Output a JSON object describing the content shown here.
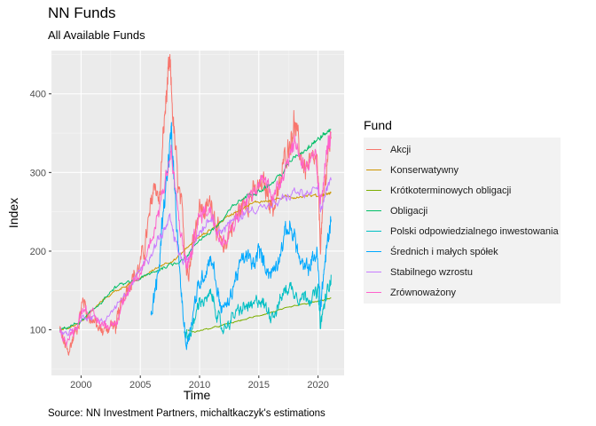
{
  "chart_data": {
    "type": "line",
    "title": "NN Funds",
    "subtitle": "All Available Funds",
    "xlabel": "Time",
    "ylabel": "Index",
    "caption": "Source: NN Investment Partners, michaltkaczyk's estimations",
    "legend_title": "Fund",
    "legend_position": "right",
    "grid": true,
    "xlim": [
      1997.5,
      2022.2
    ],
    "ylim": [
      42,
      455
    ],
    "x_ticks": [
      2000,
      2005,
      2010,
      2015,
      2020
    ],
    "y_ticks": [
      100,
      200,
      300,
      400
    ],
    "series": [
      {
        "name": "Akcji",
        "color": "#F8766D",
        "vol": 0.55,
        "points": [
          [
            1998.2,
            100
          ],
          [
            1998.6,
            82
          ],
          [
            1998.9,
            70
          ],
          [
            1999.3,
            88
          ],
          [
            1999.8,
            110
          ],
          [
            2000.2,
            140
          ],
          [
            2000.6,
            118
          ],
          [
            2001.0,
            112
          ],
          [
            2001.5,
            100
          ],
          [
            2001.9,
            98
          ],
          [
            2002.5,
            108
          ],
          [
            2002.9,
            102
          ],
          [
            2003.2,
            120
          ],
          [
            2003.7,
            150
          ],
          [
            2004.2,
            165
          ],
          [
            2004.8,
            175
          ],
          [
            2005.3,
            200
          ],
          [
            2005.8,
            245
          ],
          [
            2006.2,
            290
          ],
          [
            2006.6,
            260
          ],
          [
            2007.0,
            360
          ],
          [
            2007.3,
            415
          ],
          [
            2007.5,
            435
          ],
          [
            2007.8,
            360
          ],
          [
            2008.2,
            280
          ],
          [
            2008.6,
            240
          ],
          [
            2008.9,
            175
          ],
          [
            2009.2,
            185
          ],
          [
            2009.6,
            230
          ],
          [
            2010.0,
            255
          ],
          [
            2010.5,
            250
          ],
          [
            2011.0,
            265
          ],
          [
            2011.5,
            230
          ],
          [
            2011.9,
            200
          ],
          [
            2012.3,
            215
          ],
          [
            2012.8,
            235
          ],
          [
            2013.3,
            250
          ],
          [
            2013.8,
            262
          ],
          [
            2014.3,
            270
          ],
          [
            2014.8,
            275
          ],
          [
            2015.3,
            285
          ],
          [
            2015.8,
            272
          ],
          [
            2016.2,
            255
          ],
          [
            2016.7,
            275
          ],
          [
            2017.2,
            320
          ],
          [
            2017.7,
            345
          ],
          [
            2018.0,
            365
          ],
          [
            2018.4,
            330
          ],
          [
            2018.9,
            305
          ],
          [
            2019.4,
            310
          ],
          [
            2019.9,
            315
          ],
          [
            2020.2,
            210
          ],
          [
            2020.5,
            270
          ],
          [
            2020.8,
            320
          ],
          [
            2021.1,
            345
          ]
        ]
      },
      {
        "name": "Konserwatywny",
        "color": "#CD9600",
        "vol": 0.08,
        "points": [
          [
            1998.2,
            100
          ],
          [
            1999.0,
            103
          ],
          [
            2000.0,
            110
          ],
          [
            2001.0,
            125
          ],
          [
            2002.0,
            140
          ],
          [
            2003.0,
            150
          ],
          [
            2004.0,
            158
          ],
          [
            2005.0,
            165
          ],
          [
            2006.0,
            175
          ],
          [
            2007.0,
            184
          ],
          [
            2008.0,
            190
          ],
          [
            2009.0,
            205
          ],
          [
            2010.0,
            218
          ],
          [
            2011.0,
            228
          ],
          [
            2012.0,
            240
          ],
          [
            2013.0,
            250
          ],
          [
            2014.0,
            258
          ],
          [
            2015.0,
            263
          ],
          [
            2016.0,
            265
          ],
          [
            2017.0,
            268
          ],
          [
            2018.0,
            269
          ],
          [
            2019.0,
            271
          ],
          [
            2020.0,
            270
          ],
          [
            2020.5,
            272
          ],
          [
            2021.1,
            274
          ]
        ]
      },
      {
        "name": "Krótkoterminowych obligacji",
        "color": "#7CAE00",
        "vol": 0.05,
        "points": [
          [
            2009.0,
            100
          ],
          [
            2009.5,
            97
          ],
          [
            2010.0,
            99
          ],
          [
            2011.0,
            102
          ],
          [
            2012.0,
            106
          ],
          [
            2013.0,
            110
          ],
          [
            2014.0,
            114
          ],
          [
            2015.0,
            118
          ],
          [
            2016.0,
            122
          ],
          [
            2017.0,
            126
          ],
          [
            2018.0,
            130
          ],
          [
            2019.0,
            133
          ],
          [
            2020.0,
            136
          ],
          [
            2020.5,
            138
          ],
          [
            2021.1,
            140
          ]
        ]
      },
      {
        "name": "Obligacji",
        "color": "#00BE67",
        "vol": 0.12,
        "points": [
          [
            1998.2,
            100
          ],
          [
            1999.0,
            104
          ],
          [
            2000.0,
            110
          ],
          [
            2001.0,
            125
          ],
          [
            2002.0,
            140
          ],
          [
            2003.0,
            155
          ],
          [
            2004.0,
            160
          ],
          [
            2005.0,
            165
          ],
          [
            2006.0,
            172
          ],
          [
            2007.0,
            180
          ],
          [
            2008.0,
            185
          ],
          [
            2009.0,
            195
          ],
          [
            2010.0,
            215
          ],
          [
            2011.0,
            225
          ],
          [
            2012.0,
            240
          ],
          [
            2013.0,
            260
          ],
          [
            2014.0,
            270
          ],
          [
            2015.0,
            278
          ],
          [
            2016.0,
            285
          ],
          [
            2017.0,
            300
          ],
          [
            2018.0,
            320
          ],
          [
            2019.0,
            330
          ],
          [
            2019.5,
            338
          ],
          [
            2020.0,
            342
          ],
          [
            2020.5,
            348
          ],
          [
            2021.1,
            355
          ]
        ]
      },
      {
        "name": "Polski odpowiedzialnego inwestowania",
        "color": "#00BFC4",
        "vol": 0.45,
        "points": [
          [
            2008.7,
            100
          ],
          [
            2009.0,
            90
          ],
          [
            2009.5,
            105
          ],
          [
            2010.0,
            140
          ],
          [
            2010.5,
            135
          ],
          [
            2011.0,
            145
          ],
          [
            2011.5,
            120
          ],
          [
            2011.9,
            100
          ],
          [
            2012.5,
            110
          ],
          [
            2013.0,
            120
          ],
          [
            2013.5,
            125
          ],
          [
            2014.0,
            130
          ],
          [
            2014.5,
            128
          ],
          [
            2015.0,
            140
          ],
          [
            2015.5,
            130
          ],
          [
            2016.0,
            120
          ],
          [
            2016.5,
            125
          ],
          [
            2017.0,
            145
          ],
          [
            2017.5,
            155
          ],
          [
            2018.0,
            150
          ],
          [
            2018.5,
            140
          ],
          [
            2019.0,
            145
          ],
          [
            2019.5,
            140
          ],
          [
            2020.0,
            150
          ],
          [
            2020.2,
            105
          ],
          [
            2020.5,
            130
          ],
          [
            2020.8,
            150
          ],
          [
            2021.1,
            170
          ]
        ]
      },
      {
        "name": "Średnich i małych spółek",
        "color": "#00A9FF",
        "vol": 0.5,
        "points": [
          [
            2005.9,
            115
          ],
          [
            2006.2,
            145
          ],
          [
            2006.6,
            180
          ],
          [
            2006.9,
            250
          ],
          [
            2007.3,
            300
          ],
          [
            2007.6,
            350
          ],
          [
            2007.8,
            300
          ],
          [
            2008.2,
            200
          ],
          [
            2008.6,
            120
          ],
          [
            2008.9,
            78
          ],
          [
            2009.2,
            100
          ],
          [
            2009.6,
            135
          ],
          [
            2010.0,
            160
          ],
          [
            2010.5,
            175
          ],
          [
            2011.0,
            195
          ],
          [
            2011.5,
            150
          ],
          [
            2011.9,
            125
          ],
          [
            2012.5,
            135
          ],
          [
            2013.0,
            165
          ],
          [
            2013.5,
            185
          ],
          [
            2014.0,
            195
          ],
          [
            2014.5,
            180
          ],
          [
            2015.0,
            200
          ],
          [
            2015.5,
            185
          ],
          [
            2016.0,
            170
          ],
          [
            2016.5,
            185
          ],
          [
            2017.0,
            210
          ],
          [
            2017.5,
            232
          ],
          [
            2018.0,
            220
          ],
          [
            2018.5,
            185
          ],
          [
            2018.9,
            175
          ],
          [
            2019.4,
            185
          ],
          [
            2019.9,
            200
          ],
          [
            2020.2,
            130
          ],
          [
            2020.5,
            175
          ],
          [
            2020.8,
            210
          ],
          [
            2021.1,
            240
          ]
        ]
      },
      {
        "name": "Stabilnego wzrostu",
        "color": "#C77CFF",
        "vol": 0.25,
        "points": [
          [
            1998.2,
            100
          ],
          [
            1998.8,
            95
          ],
          [
            1999.5,
            102
          ],
          [
            2000.3,
            118
          ],
          [
            2001.0,
            115
          ],
          [
            2002.0,
            112
          ],
          [
            2003.0,
            130
          ],
          [
            2004.0,
            150
          ],
          [
            2005.0,
            175
          ],
          [
            2005.8,
            195
          ],
          [
            2006.5,
            215
          ],
          [
            2007.0,
            225
          ],
          [
            2007.5,
            240
          ],
          [
            2008.0,
            210
          ],
          [
            2008.6,
            185
          ],
          [
            2009.0,
            190
          ],
          [
            2009.6,
            215
          ],
          [
            2010.2,
            230
          ],
          [
            2011.0,
            245
          ],
          [
            2011.6,
            225
          ],
          [
            2012.2,
            230
          ],
          [
            2013.0,
            240
          ],
          [
            2014.0,
            250
          ],
          [
            2015.0,
            258
          ],
          [
            2016.0,
            255
          ],
          [
            2017.0,
            265
          ],
          [
            2018.0,
            275
          ],
          [
            2019.0,
            272
          ],
          [
            2020.0,
            278
          ],
          [
            2020.2,
            250
          ],
          [
            2020.6,
            272
          ],
          [
            2021.1,
            290
          ]
        ]
      },
      {
        "name": "Zrównoważony",
        "color": "#FF61CC",
        "vol": 0.4,
        "points": [
          [
            1998.2,
            100
          ],
          [
            1998.8,
            85
          ],
          [
            1999.4,
            98
          ],
          [
            2000.2,
            130
          ],
          [
            2000.8,
            120
          ],
          [
            2001.5,
            110
          ],
          [
            2002.2,
            105
          ],
          [
            2002.9,
            110
          ],
          [
            2003.5,
            135
          ],
          [
            2004.2,
            150
          ],
          [
            2005.0,
            170
          ],
          [
            2005.7,
            205
          ],
          [
            2006.3,
            235
          ],
          [
            2006.8,
            270
          ],
          [
            2007.3,
            305
          ],
          [
            2007.6,
            325
          ],
          [
            2008.0,
            270
          ],
          [
            2008.5,
            215
          ],
          [
            2008.9,
            180
          ],
          [
            2009.3,
            195
          ],
          [
            2009.8,
            235
          ],
          [
            2010.3,
            250
          ],
          [
            2010.8,
            255
          ],
          [
            2011.3,
            240
          ],
          [
            2011.9,
            210
          ],
          [
            2012.5,
            225
          ],
          [
            2013.2,
            245
          ],
          [
            2014.0,
            265
          ],
          [
            2014.8,
            275
          ],
          [
            2015.4,
            295
          ],
          [
            2015.9,
            280
          ],
          [
            2016.4,
            270
          ],
          [
            2017.0,
            300
          ],
          [
            2017.6,
            325
          ],
          [
            2018.1,
            340
          ],
          [
            2018.6,
            315
          ],
          [
            2019.2,
            310
          ],
          [
            2019.8,
            315
          ],
          [
            2020.2,
            255
          ],
          [
            2020.5,
            300
          ],
          [
            2020.8,
            330
          ],
          [
            2021.1,
            350
          ]
        ]
      }
    ]
  }
}
